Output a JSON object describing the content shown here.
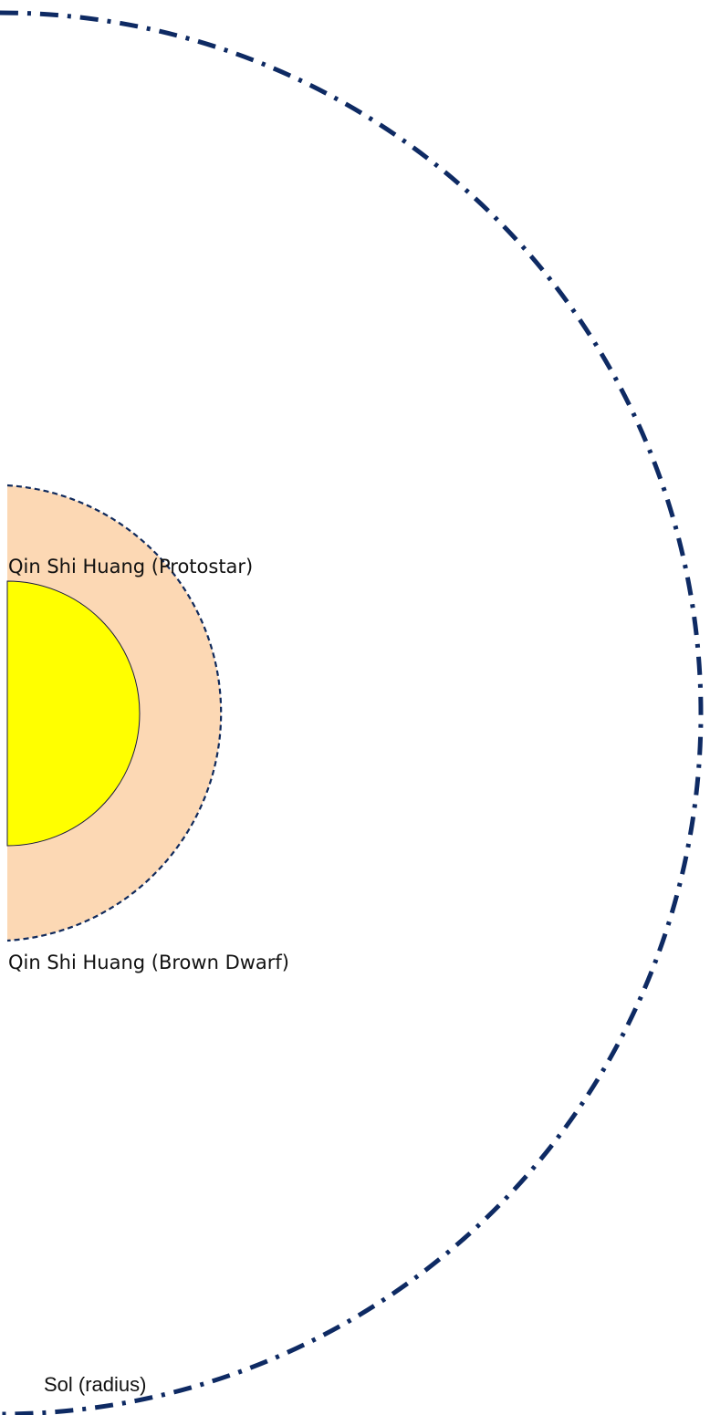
{
  "diagram": {
    "labels": {
      "protostar": "Qin Shi Huang (Protostar)",
      "brown_dwarf": "Qin Shi Huang (Brown Dwarf)",
      "sol": "Sol (radius)"
    },
    "colors": {
      "protostar_fill": "#FCD8B4",
      "brown_dwarf_fill": "#FFFF00",
      "dashed_outline": "#102A5C",
      "sol_outline": "#0E2A63",
      "core_outline": "#1A1A40"
    }
  }
}
